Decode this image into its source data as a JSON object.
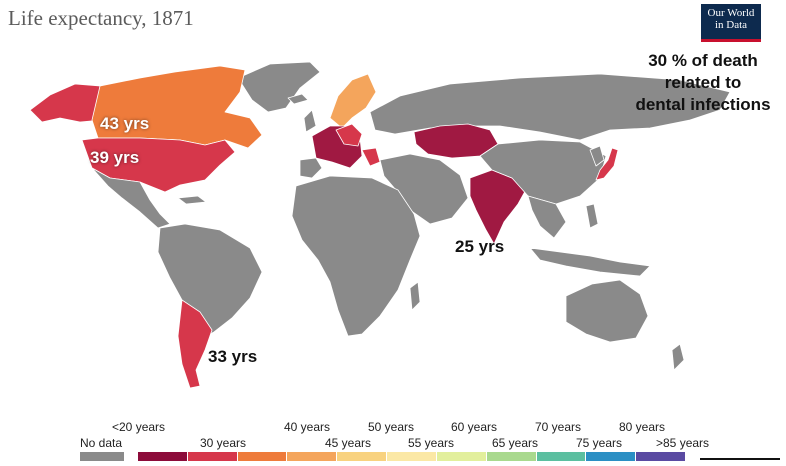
{
  "header": {
    "title": "Life expectancy, 1871",
    "logo_lines": [
      "Our World",
      "in Data"
    ]
  },
  "note": {
    "lines": [
      "30 % of death",
      "related to",
      "dental infections"
    ]
  },
  "map_labels": {
    "canada": "43 yrs",
    "usa": "39 yrs",
    "india": "25 yrs",
    "argentina": "33 yrs"
  },
  "regions": [
    {
      "name": "Canada",
      "value_label": "43 yrs",
      "color": "#ee7b3b"
    },
    {
      "name": "United States",
      "value_label": "39 yrs",
      "color": "#d6374b"
    },
    {
      "name": "Alaska",
      "color": "#d6374b"
    },
    {
      "name": "India",
      "value_label": "25 yrs",
      "color": "#a01942"
    },
    {
      "name": "Argentina",
      "value_label": "33 yrs",
      "color": "#d6374b"
    },
    {
      "name": "Kazakhstan",
      "color": "#a01942"
    },
    {
      "name": "Japan",
      "color": "#d6374b"
    },
    {
      "name": "Scandinavia",
      "color": "#f4a55c"
    },
    {
      "name": "Western Europe",
      "color": "#a01942"
    }
  ],
  "legend": {
    "no_data": {
      "label": "No data",
      "color": "#8a8a8a"
    },
    "top_labels": [
      "<20 years",
      "40 years",
      "50 years",
      "60 years",
      "70 years",
      "80 years"
    ],
    "bottom_labels": [
      "30 years",
      "45 years",
      "55 years",
      "65 years",
      "75 years",
      ">85 years"
    ],
    "bins": [
      {
        "color": "#8c0b3a"
      },
      {
        "color": "#d6374b"
      },
      {
        "color": "#ee7b3b"
      },
      {
        "color": "#f4a55c"
      },
      {
        "color": "#f8d27f"
      },
      {
        "color": "#fbe8a5"
      },
      {
        "color": "#e2ef9c"
      },
      {
        "color": "#a9d98e"
      },
      {
        "color": "#5bbfa0"
      },
      {
        "color": "#2b8fc4"
      },
      {
        "color": "#5a4aa2"
      }
    ]
  },
  "colors": {
    "no_data": "#8a8a8a",
    "border": "#ffffff"
  }
}
